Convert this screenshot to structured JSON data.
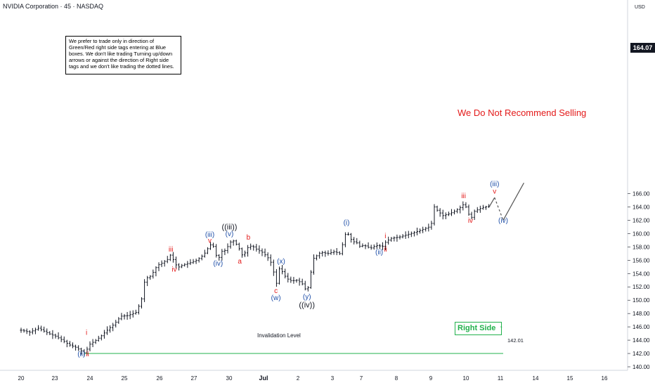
{
  "header": {
    "symbol_title": "NVIDIA Corporation · 45 · NASDAQ"
  },
  "note": "We prefer to trade only in direction of Green/Red right side tags entering at Blue boxes. We don't like trading Turning up/down arrows or against the direction of Right side tags and we don't like trading the dotted lines.",
  "warning": "We Do Not Recommend Selling",
  "right_side_tag": {
    "label": "Right Side",
    "arrow": "↑",
    "color": "#22b14c"
  },
  "invalidation": {
    "label": "Invalidation Level",
    "value_label": "142.01"
  },
  "price_axis": {
    "currency": "USD",
    "current_price": "164.07"
  },
  "colors": {
    "candle": "#131722",
    "wave_red": "#e31a1a",
    "wave_blue": "#1f4fa8",
    "wave_black": "#131722",
    "invalidation_line": "#22b14c",
    "projection": "#555555"
  },
  "chart_data": {
    "type": "ohlc",
    "title": "NVIDIA Corporation · 45 · NASDAQ",
    "ylim": [
      140,
      168
    ],
    "y_ticks": [
      "140.00",
      "142.00",
      "144.00",
      "146.00",
      "148.00",
      "150.00",
      "152.00",
      "154.00",
      "156.00",
      "158.00",
      "160.00",
      "162.00",
      "164.00",
      "166.00"
    ],
    "x_ticks": [
      "20",
      "23",
      "24",
      "25",
      "26",
      "27",
      "30",
      "Jul",
      "2",
      "3",
      "7",
      "8",
      "9",
      "10",
      "11",
      "14",
      "15",
      "16"
    ],
    "grid": false,
    "price_path": [
      {
        "t": 0.0,
        "p": 145.5
      },
      {
        "t": 0.25,
        "p": 145.2
      },
      {
        "t": 0.5,
        "p": 145.8
      },
      {
        "t": 0.8,
        "p": 145.0
      },
      {
        "t": 1.0,
        "p": 144.6
      },
      {
        "t": 1.2,
        "p": 144.0
      },
      {
        "t": 1.4,
        "p": 143.3
      },
      {
        "t": 1.6,
        "p": 142.9
      },
      {
        "t": 1.75,
        "p": 142.4
      },
      {
        "t": 1.85,
        "p": 142.05
      },
      {
        "t": 1.9,
        "p": 142.5
      },
      {
        "t": 2.0,
        "p": 143.4
      },
      {
        "t": 2.15,
        "p": 143.9
      },
      {
        "t": 2.3,
        "p": 144.5
      },
      {
        "t": 2.5,
        "p": 145.5
      },
      {
        "t": 2.7,
        "p": 146.4
      },
      {
        "t": 2.9,
        "p": 147.6
      },
      {
        "t": 3.1,
        "p": 147.7
      },
      {
        "t": 3.35,
        "p": 148.2
      },
      {
        "t": 3.5,
        "p": 150.2
      },
      {
        "t": 3.6,
        "p": 153.2
      },
      {
        "t": 3.75,
        "p": 153.6
      },
      {
        "t": 3.85,
        "p": 154.3
      },
      {
        "t": 3.95,
        "p": 155.2
      },
      {
        "t": 4.1,
        "p": 155.6
      },
      {
        "t": 4.25,
        "p": 156.1
      },
      {
        "t": 4.35,
        "p": 156.9
      },
      {
        "t": 4.45,
        "p": 155.7
      },
      {
        "t": 4.55,
        "p": 154.9
      },
      {
        "t": 4.7,
        "p": 155.3
      },
      {
        "t": 4.9,
        "p": 155.6
      },
      {
        "t": 5.1,
        "p": 156.0
      },
      {
        "t": 5.3,
        "p": 156.8
      },
      {
        "t": 5.45,
        "p": 158.0
      },
      {
        "t": 5.55,
        "p": 158.6
      },
      {
        "t": 5.65,
        "p": 157.0
      },
      {
        "t": 5.72,
        "p": 155.9
      },
      {
        "t": 5.8,
        "p": 157.3
      },
      {
        "t": 5.95,
        "p": 157.5
      },
      {
        "t": 6.05,
        "p": 158.6
      },
      {
        "t": 6.15,
        "p": 159.0
      },
      {
        "t": 6.25,
        "p": 158.4
      },
      {
        "t": 6.35,
        "p": 157.6
      },
      {
        "t": 6.45,
        "p": 156.4
      },
      {
        "t": 6.55,
        "p": 157.8
      },
      {
        "t": 6.7,
        "p": 158.2
      },
      {
        "t": 6.85,
        "p": 157.6
      },
      {
        "t": 7.0,
        "p": 157.2
      },
      {
        "t": 7.15,
        "p": 156.5
      },
      {
        "t": 7.3,
        "p": 155.3
      },
      {
        "t": 7.4,
        "p": 152.1
      },
      {
        "t": 7.5,
        "p": 154.7
      },
      {
        "t": 7.6,
        "p": 154.2
      },
      {
        "t": 7.7,
        "p": 153.3
      },
      {
        "t": 7.85,
        "p": 152.9
      },
      {
        "t": 8.0,
        "p": 153.0
      },
      {
        "t": 8.15,
        "p": 152.6
      },
      {
        "t": 8.25,
        "p": 151.7
      },
      {
        "t": 8.32,
        "p": 151.5
      },
      {
        "t": 8.4,
        "p": 153.8
      },
      {
        "t": 8.5,
        "p": 156.3
      },
      {
        "t": 8.7,
        "p": 157.2
      },
      {
        "t": 8.9,
        "p": 157.0
      },
      {
        "t": 9.1,
        "p": 157.3
      },
      {
        "t": 9.25,
        "p": 157.0
      },
      {
        "t": 9.35,
        "p": 158.6
      },
      {
        "t": 9.45,
        "p": 160.5
      },
      {
        "t": 9.55,
        "p": 159.3
      },
      {
        "t": 9.65,
        "p": 158.8
      },
      {
        "t": 9.75,
        "p": 158.6
      },
      {
        "t": 9.85,
        "p": 158.0
      },
      {
        "t": 9.95,
        "p": 158.3
      },
      {
        "t": 10.05,
        "p": 158.0
      },
      {
        "t": 10.15,
        "p": 157.8
      },
      {
        "t": 10.3,
        "p": 158.2
      },
      {
        "t": 10.5,
        "p": 158.1
      },
      {
        "t": 10.6,
        "p": 158.8
      },
      {
        "t": 10.75,
        "p": 159.3
      },
      {
        "t": 11.0,
        "p": 159.5
      },
      {
        "t": 11.25,
        "p": 159.9
      },
      {
        "t": 11.5,
        "p": 160.3
      },
      {
        "t": 11.7,
        "p": 160.7
      },
      {
        "t": 11.85,
        "p": 161.0
      },
      {
        "t": 11.95,
        "p": 161.8
      },
      {
        "t": 12.0,
        "p": 164.0
      },
      {
        "t": 12.1,
        "p": 163.4
      },
      {
        "t": 12.25,
        "p": 162.7
      },
      {
        "t": 12.45,
        "p": 163.0
      },
      {
        "t": 12.6,
        "p": 163.4
      },
      {
        "t": 12.75,
        "p": 163.9
      },
      {
        "t": 12.85,
        "p": 164.4
      },
      {
        "t": 12.95,
        "p": 163.8
      },
      {
        "t": 13.05,
        "p": 162.0
      },
      {
        "t": 13.15,
        "p": 163.3
      },
      {
        "t": 13.3,
        "p": 163.7
      },
      {
        "t": 13.45,
        "p": 164.0
      },
      {
        "t": 13.6,
        "p": 164.07
      }
    ],
    "projection": {
      "solid_segments": [
        [
          {
            "t": 13.6,
            "p": 164.07
          },
          {
            "t": 13.75,
            "p": 165.4
          }
        ],
        [
          {
            "t": 14.0,
            "p": 162.0
          },
          {
            "t": 14.6,
            "p": 167.6
          }
        ]
      ],
      "dotted_segment": [
        {
          "t": 13.75,
          "p": 165.4
        },
        {
          "t": 14.0,
          "p": 162.0
        }
      ]
    },
    "invalidation_level": 142.01,
    "wave_labels": [
      {
        "text": "(ii)",
        "color": "blue",
        "t": 1.75,
        "p": 141.6
      },
      {
        "text": "ii",
        "color": "red",
        "t": 1.93,
        "p": 141.6
      },
      {
        "text": "i",
        "color": "red",
        "t": 1.9,
        "p": 144.8
      },
      {
        "text": "iii",
        "color": "red",
        "t": 4.35,
        "p": 157.3
      },
      {
        "text": "iv",
        "color": "red",
        "t": 4.45,
        "p": 154.3
      },
      {
        "text": "(iii)",
        "color": "blue",
        "t": 5.48,
        "p": 159.5
      },
      {
        "text": "v",
        "color": "red",
        "t": 5.48,
        "p": 158.6
      },
      {
        "text": "(iv)",
        "color": "blue",
        "t": 5.72,
        "p": 155.2
      },
      {
        "text": "((iii))",
        "color": "black",
        "t": 6.05,
        "p": 160.6
      },
      {
        "text": "(v)",
        "color": "blue",
        "t": 6.05,
        "p": 159.6
      },
      {
        "text": "a",
        "color": "red",
        "t": 6.35,
        "p": 155.5
      },
      {
        "text": "b",
        "color": "red",
        "t": 6.6,
        "p": 159.1
      },
      {
        "text": "(x)",
        "color": "blue",
        "t": 7.55,
        "p": 155.5
      },
      {
        "text": "c",
        "color": "red",
        "t": 7.4,
        "p": 151.1
      },
      {
        "text": "(w)",
        "color": "blue",
        "t": 7.4,
        "p": 150.0
      },
      {
        "text": "(y)",
        "color": "blue",
        "t": 8.3,
        "p": 150.2
      },
      {
        "text": "((iv))",
        "color": "black",
        "t": 8.3,
        "p": 148.9
      },
      {
        "text": "(i)",
        "color": "blue",
        "t": 9.45,
        "p": 161.3
      },
      {
        "text": "i",
        "color": "red",
        "t": 10.58,
        "p": 159.3
      },
      {
        "text": "(ii)",
        "color": "blue",
        "t": 10.4,
        "p": 156.9
      },
      {
        "text": "ii",
        "color": "red",
        "t": 10.58,
        "p": 157.3
      },
      {
        "text": "iii",
        "color": "red",
        "t": 12.85,
        "p": 165.3
      },
      {
        "text": "iv",
        "color": "red",
        "t": 13.05,
        "p": 161.6
      },
      {
        "text": "(iii)",
        "color": "blue",
        "t": 13.75,
        "p": 167.1
      },
      {
        "text": "v",
        "color": "red",
        "t": 13.75,
        "p": 166.0
      },
      {
        "text": "(iv)",
        "color": "blue",
        "t": 14.0,
        "p": 161.6
      }
    ]
  }
}
